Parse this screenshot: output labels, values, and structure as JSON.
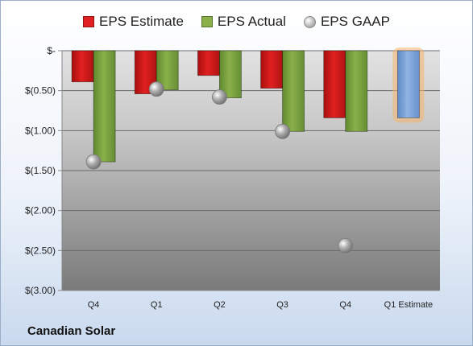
{
  "company": "Canadian Solar",
  "legend": {
    "estimate": "EPS Estimate",
    "actual": "EPS Actual",
    "gaap": "EPS GAAP"
  },
  "colors": {
    "estimate": "#e02020",
    "actual": "#8ab04a",
    "gaap": "#b0b0b0",
    "forecast": "#8fb4e3",
    "forecast_glow": "#f5b56b"
  },
  "chart_data": {
    "type": "bar",
    "categories": [
      "Q4",
      "Q1",
      "Q2",
      "Q3",
      "Q4",
      "Q1 Estimate"
    ],
    "ytick_labels": [
      "$-",
      "$(0.50)",
      "$(1.00)",
      "$(1.50)",
      "$(2.00)",
      "$(2.50)",
      "$(3.00)"
    ],
    "ytick_values": [
      0,
      -0.5,
      -1.0,
      -1.5,
      -2.0,
      -2.5,
      -3.0
    ],
    "ylim": [
      -3.0,
      0
    ],
    "grid": true,
    "legend_position": "top",
    "series": [
      {
        "name": "EPS Estimate",
        "values": [
          -0.39,
          -0.54,
          -0.31,
          -0.47,
          -0.84,
          null
        ]
      },
      {
        "name": "EPS Actual",
        "values": [
          -1.39,
          -0.49,
          -0.59,
          -1.01,
          -1.01,
          null
        ]
      },
      {
        "name": "EPS GAAP",
        "values": [
          -1.39,
          -0.48,
          -0.58,
          -1.01,
          -2.44,
          null
        ]
      }
    ],
    "forecast": {
      "category": "Q1 Estimate",
      "value": -0.84
    }
  }
}
